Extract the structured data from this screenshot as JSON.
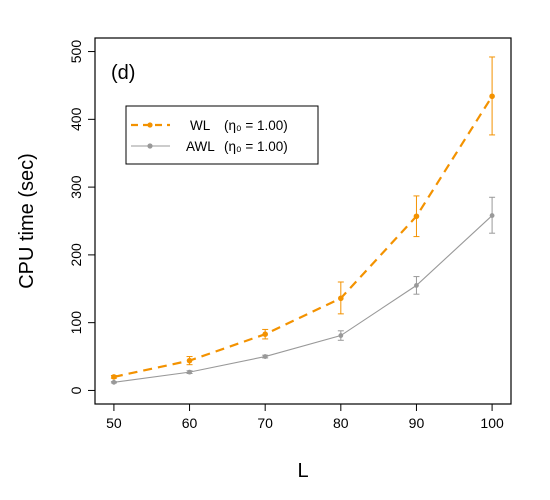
{
  "chart_data": {
    "type": "line",
    "panel_label": "(d)",
    "xlabel": "L",
    "ylabel": "CPU time (sec)",
    "x": [
      50,
      60,
      70,
      80,
      90,
      100
    ],
    "xticks": [
      50,
      60,
      70,
      80,
      90,
      100
    ],
    "yticks": [
      0,
      100,
      200,
      300,
      400,
      500
    ],
    "xlim": [
      47.5,
      102.5
    ],
    "ylim": [
      -20,
      520
    ],
    "grid": false,
    "legend_position": "upper-left",
    "series": [
      {
        "name": "WL",
        "legend_tail": "(η₀ = 1.00)",
        "color": "#f39200",
        "line_style": "dashed",
        "values": [
          20,
          44,
          83,
          136,
          257,
          434
        ],
        "error_low": [
          18,
          38,
          76,
          113,
          227,
          377
        ],
        "error_high": [
          22,
          50,
          90,
          160,
          287,
          492
        ]
      },
      {
        "name": "AWL",
        "legend_tail": "(η₀ = 1.00)",
        "color": "#999999",
        "line_style": "solid",
        "values": [
          12,
          27,
          50,
          81,
          155,
          258
        ],
        "error_low": [
          11,
          25,
          48,
          74,
          142,
          232
        ],
        "error_high": [
          13,
          29,
          52,
          88,
          168,
          285
        ]
      }
    ]
  }
}
